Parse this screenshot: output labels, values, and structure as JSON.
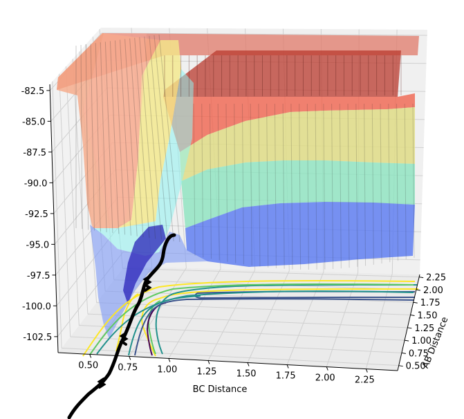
{
  "chart_data": {
    "type": "surface3d",
    "xlabel": "BC Distance",
    "ylabel": "AB Distance",
    "zlabel": "",
    "xlim": [
      0.3,
      2.45
    ],
    "ylim": [
      0.4,
      2.3
    ],
    "zlim": [
      -103.8,
      -82.0
    ],
    "x_ticks": [
      "0.50",
      "0.75",
      "1.00",
      "1.25",
      "1.50",
      "1.75",
      "2.00",
      "2.25"
    ],
    "y_ticks": [
      "0.50",
      "0.75",
      "1.00",
      "1.25",
      "1.50",
      "1.75",
      "2.00",
      "2.25"
    ],
    "z_ticks": [
      "-82.5",
      "-85.0",
      "-87.5",
      "-90.0",
      "-92.5",
      "-95.0",
      "-97.5",
      "-100.0",
      "-102.5"
    ],
    "z_tick_values": [
      -82.5,
      -85.0,
      -87.5,
      -90.0,
      -92.5,
      -95.0,
      -97.5,
      -100.0,
      -102.5
    ],
    "colormap": "jet",
    "contour_colors": [
      "#440154",
      "#3b528b",
      "#21918c",
      "#5ec962",
      "#fde725"
    ],
    "trajectory_color": "#000000",
    "grid": true
  }
}
